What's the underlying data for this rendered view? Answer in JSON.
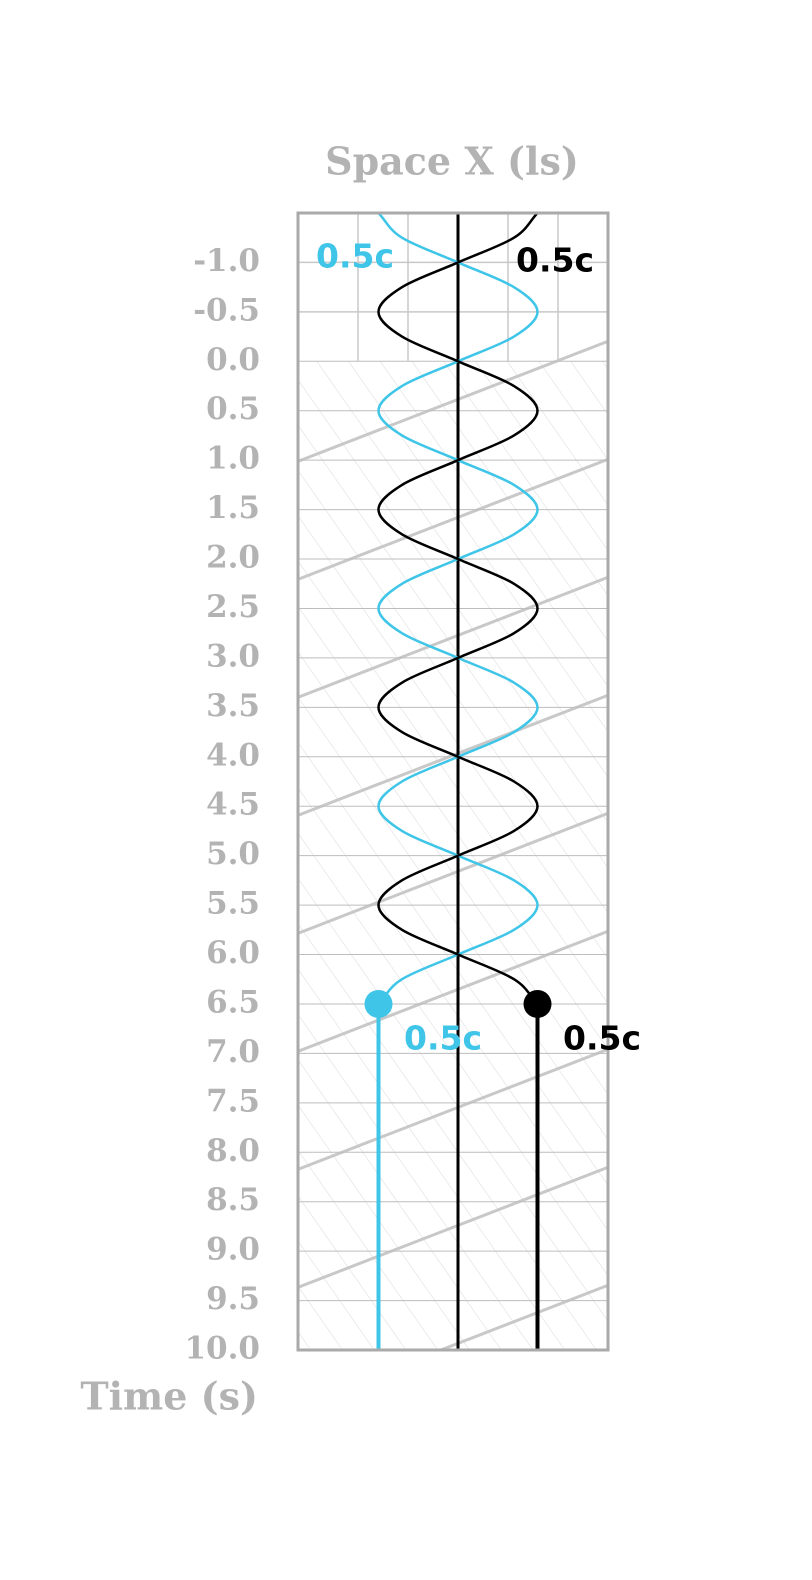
{
  "chart_data": {
    "type": "spacetime",
    "xlabel": "Space X (ls)",
    "ylabel": "Time (s)",
    "xlim": [
      -0.32,
      0.3
    ],
    "ylim": [
      -1.5,
      10
    ],
    "xticks": [
      -0.2,
      -0.1,
      0,
      0.1,
      0.2
    ],
    "yticks": [
      {
        "value": -1,
        "label": "-1.0"
      },
      -0.5,
      {
        "value": 0,
        "label": "0.0"
      },
      0.5,
      {
        "value": 1,
        "label": "1.0"
      },
      1.5,
      {
        "value": 2,
        "label": "2.0"
      },
      2.5,
      {
        "value": 3,
        "label": "3.0"
      },
      3.5,
      {
        "value": 4,
        "label": "4.0"
      },
      4.5,
      {
        "value": 5,
        "label": "5.0"
      },
      5.5,
      {
        "value": 6,
        "label": "6.0"
      },
      6.5,
      {
        "value": 7,
        "label": "7.0"
      },
      7.5,
      {
        "value": 8,
        "label": "8.0"
      },
      8.5,
      {
        "value": 9,
        "label": "9.0"
      },
      9.5,
      {
        "value": 10,
        "label": "10.0"
      }
    ],
    "grid": true,
    "series": [
      {
        "color": "#3ec5e8",
        "speed_label": "0.5c",
        "end_label": "0.5c",
        "t": [
          -1.5,
          -1.25,
          -1,
          -0.75,
          -0.5,
          -0.25,
          0,
          0.25,
          0.5,
          0.75,
          1,
          1.25,
          1.5,
          1.75,
          2,
          2.25,
          2.5,
          2.75,
          3,
          3.25,
          3.5,
          3.75,
          4,
          4.25,
          4.5,
          4.75,
          5,
          5.25,
          5.5,
          5.75,
          6,
          6.25,
          6.5,
          10
        ],
        "x": [
          -0.159,
          -0.112,
          0,
          0.112,
          0.159,
          0.112,
          0,
          -0.112,
          -0.159,
          -0.112,
          0,
          0.112,
          0.159,
          0.112,
          0,
          -0.112,
          -0.159,
          -0.112,
          0,
          0.112,
          0.159,
          0.112,
          0,
          -0.112,
          -0.159,
          -0.112,
          0,
          0.112,
          0.159,
          0.112,
          0,
          -0.112,
          -0.159,
          -0.159
        ]
      },
      {
        "color": "#000000",
        "speed_label": "0.5c",
        "end_label": "0.5c",
        "t": [
          -1.5,
          -1.25,
          -1,
          -0.75,
          -0.5,
          -0.25,
          0,
          0.25,
          0.5,
          0.75,
          1,
          1.25,
          1.5,
          1.75,
          2,
          2.25,
          2.5,
          2.75,
          3,
          3.25,
          3.5,
          3.75,
          4,
          4.25,
          4.5,
          4.75,
          5,
          5.25,
          5.5,
          5.75,
          6,
          6.25,
          6.5,
          10
        ],
        "x": [
          0.159,
          0.112,
          0,
          -0.112,
          -0.159,
          -0.112,
          0,
          0.112,
          0.159,
          0.112,
          0,
          -0.112,
          -0.159,
          -0.112,
          0,
          0.112,
          0.159,
          0.112,
          0,
          -0.112,
          -0.159,
          -0.112,
          0,
          0.112,
          0.159,
          0.112,
          0,
          -0.112,
          -0.159,
          -0.112,
          0,
          0.112,
          0.159,
          0.159
        ]
      }
    ]
  }
}
